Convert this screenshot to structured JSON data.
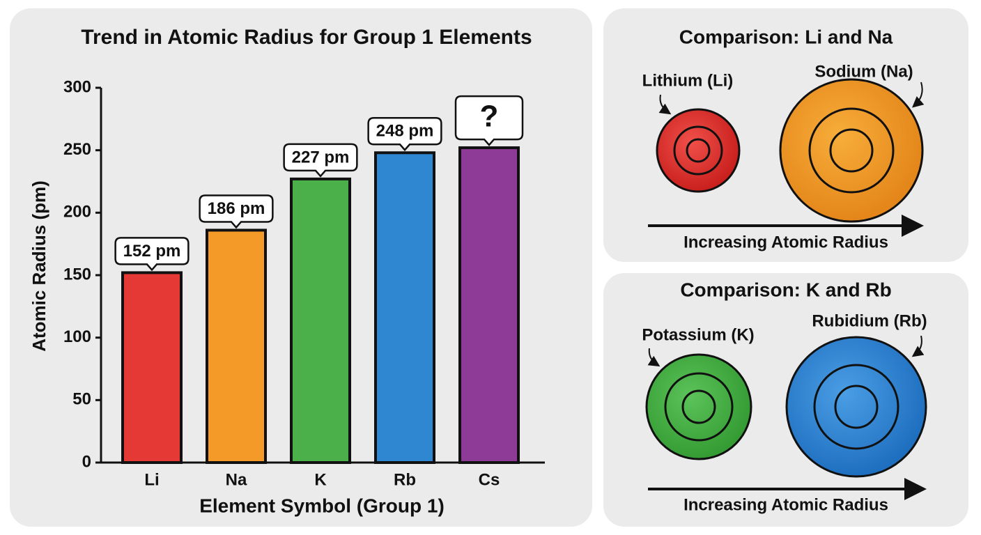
{
  "chart_data": {
    "type": "bar",
    "title": "Trend in Atomic Radius for Group 1 Elements",
    "x_label": "Element Symbol (Group 1)",
    "y_label": "Atomic Radius (pm)",
    "categories": [
      "Li",
      "Na",
      "K",
      "Rb",
      "Cs"
    ],
    "values": [
      152,
      186,
      227,
      248,
      252
    ],
    "value_labels": [
      "152 pm",
      "186 pm",
      "227 pm",
      "248 pm",
      "?"
    ],
    "colors": [
      "#e53935",
      "#f39a28",
      "#4cb04a",
      "#2f86d1",
      "#8e3b97"
    ],
    "ylim": [
      0,
      300
    ],
    "yticks": [
      0,
      50,
      100,
      150,
      200,
      250,
      300
    ],
    "grid": false
  },
  "comparisons": [
    {
      "title": "Comparison: Li and Na",
      "atoms": [
        "Lithium (Li)",
        "Sodium (Na)"
      ],
      "arrow_label": "Increasing Atomic Radius"
    },
    {
      "title": "Comparison: K and Rb",
      "atoms": [
        "Potassium (K)",
        "Rubidium (Rb)"
      ],
      "arrow_label": "Increasing Atomic Radius"
    }
  ]
}
